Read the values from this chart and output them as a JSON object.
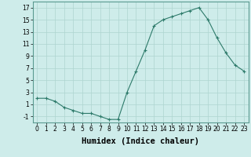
{
  "x": [
    0,
    1,
    2,
    3,
    4,
    5,
    6,
    7,
    8,
    9,
    10,
    11,
    12,
    13,
    14,
    15,
    16,
    17,
    18,
    19,
    20,
    21,
    22,
    23
  ],
  "y": [
    2,
    2,
    1.5,
    0.5,
    0,
    -0.5,
    -0.5,
    -1,
    -1.5,
    -1.5,
    3,
    6.5,
    10,
    14,
    15,
    15.5,
    16,
    16.5,
    17,
    15,
    12,
    9.5,
    7.5,
    6.5
  ],
  "xlabel": "Humidex (Indice chaleur)",
  "xlim": [
    -0.5,
    23.5
  ],
  "ylim": [
    -2,
    18
  ],
  "yticks": [
    -1,
    1,
    3,
    5,
    7,
    9,
    11,
    13,
    15,
    17
  ],
  "xticks": [
    0,
    1,
    2,
    3,
    4,
    5,
    6,
    7,
    8,
    9,
    10,
    11,
    12,
    13,
    14,
    15,
    16,
    17,
    18,
    19,
    20,
    21,
    22,
    23
  ],
  "line_color": "#2d7a6a",
  "marker": "+",
  "bg_color": "#ceecea",
  "grid_color": "#aed4d0",
  "tick_label_fontsize": 5.5,
  "xlabel_fontsize": 7.5
}
